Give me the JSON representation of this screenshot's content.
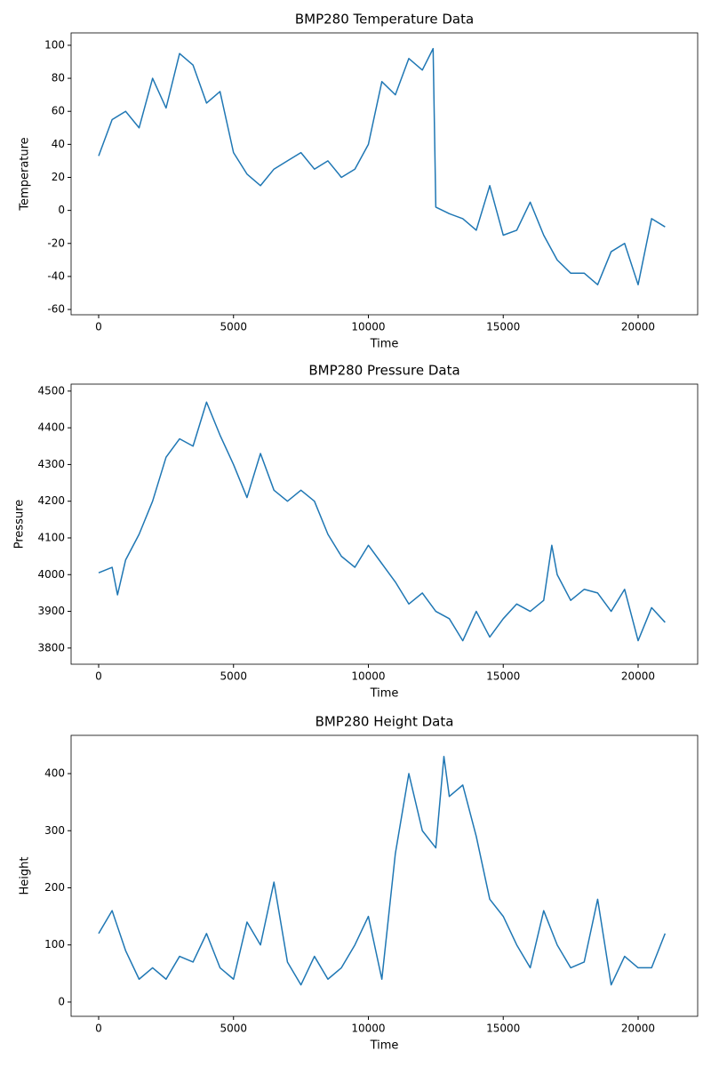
{
  "chart_data": [
    {
      "type": "line",
      "title": "BMP280 Temperature Data",
      "x_label": "Time",
      "y_label": "Temperature",
      "x": [
        0,
        500,
        1000,
        1500,
        2000,
        2500,
        3000,
        3500,
        4000,
        4500,
        5000,
        5500,
        6000,
        6500,
        7000,
        7500,
        8000,
        8500,
        9000,
        9500,
        10000,
        10500,
        11000,
        11500,
        12000,
        12400,
        12500,
        13000,
        13500,
        14000,
        14500,
        15000,
        15500,
        16000,
        16500,
        17000,
        17500,
        18000,
        18500,
        19000,
        19500,
        20000,
        20500,
        21000
      ],
      "series": [
        {
          "name": "Temperature",
          "color": "#1f77b4",
          "values": [
            33,
            55,
            60,
            50,
            80,
            62,
            95,
            88,
            65,
            72,
            35,
            22,
            15,
            25,
            30,
            35,
            25,
            30,
            20,
            25,
            40,
            78,
            70,
            92,
            85,
            98,
            2,
            -2,
            -5,
            -12,
            15,
            -15,
            -12,
            5,
            -15,
            -30,
            -38,
            -38,
            -45,
            -25,
            -20,
            -45,
            -5,
            -10
          ]
        }
      ],
      "xlim": [
        -1021,
        22208
      ],
      "xticks": [
        0,
        5000,
        10000,
        15000,
        20000
      ],
      "ylim": [
        -63.2,
        107.5
      ],
      "yticks": [
        -60,
        -40,
        -20,
        0,
        20,
        40,
        60,
        80,
        100
      ]
    },
    {
      "type": "line",
      "title": "BMP280 Pressure Data",
      "x_label": "Time",
      "y_label": "Pressure",
      "x": [
        0,
        500,
        700,
        1000,
        1500,
        2000,
        2500,
        3000,
        3500,
        4000,
        4500,
        5000,
        5500,
        6000,
        6500,
        7000,
        7500,
        8000,
        8500,
        9000,
        9500,
        10000,
        10500,
        11000,
        11500,
        12000,
        12500,
        13000,
        13500,
        14000,
        14500,
        15000,
        15500,
        16000,
        16500,
        16800,
        17000,
        17500,
        18000,
        18500,
        19000,
        19500,
        20000,
        20500,
        21000
      ],
      "series": [
        {
          "name": "Pressure",
          "color": "#1f77b4",
          "values": [
            4005,
            4020,
            3945,
            4040,
            4110,
            4200,
            4320,
            4370,
            4350,
            4470,
            4380,
            4300,
            4210,
            4330,
            4230,
            4200,
            4230,
            4200,
            4110,
            4050,
            4020,
            4080,
            4030,
            3980,
            3920,
            3950,
            3900,
            3880,
            3820,
            3900,
            3830,
            3880,
            3920,
            3900,
            3930,
            4080,
            4000,
            3930,
            3960,
            3950,
            3900,
            3960,
            3820,
            3910,
            3870
          ]
        }
      ],
      "xlim": [
        -1021,
        22208
      ],
      "xticks": [
        0,
        5000,
        10000,
        15000,
        20000
      ],
      "ylim": [
        3756,
        4519
      ],
      "yticks": [
        3800,
        3900,
        4000,
        4100,
        4200,
        4300,
        4400,
        4500
      ]
    },
    {
      "type": "line",
      "title": "BMP280 Height Data",
      "x_label": "Time",
      "y_label": "Height",
      "x": [
        0,
        500,
        1000,
        1500,
        2000,
        2500,
        3000,
        3500,
        4000,
        4500,
        5000,
        5500,
        6000,
        6500,
        7000,
        7500,
        8000,
        8500,
        9000,
        9500,
        10000,
        10500,
        11000,
        11500,
        12000,
        12500,
        12800,
        13000,
        13500,
        14000,
        14500,
        15000,
        15500,
        16000,
        16500,
        17000,
        17500,
        18000,
        18500,
        19000,
        19500,
        20000,
        20500,
        21000
      ],
      "series": [
        {
          "name": "Height",
          "color": "#1f77b4",
          "values": [
            120,
            160,
            90,
            40,
            60,
            40,
            80,
            70,
            120,
            60,
            40,
            140,
            100,
            210,
            70,
            30,
            80,
            40,
            60,
            100,
            150,
            40,
            260,
            400,
            300,
            270,
            430,
            360,
            380,
            290,
            180,
            150,
            100,
            60,
            160,
            100,
            60,
            70,
            180,
            30,
            80,
            60,
            60,
            120
          ]
        }
      ],
      "xlim": [
        -1021,
        22208
      ],
      "xticks": [
        0,
        5000,
        10000,
        15000,
        20000
      ],
      "ylim": [
        -25,
        467
      ],
      "yticks": [
        0,
        100,
        200,
        300,
        400
      ]
    }
  ]
}
